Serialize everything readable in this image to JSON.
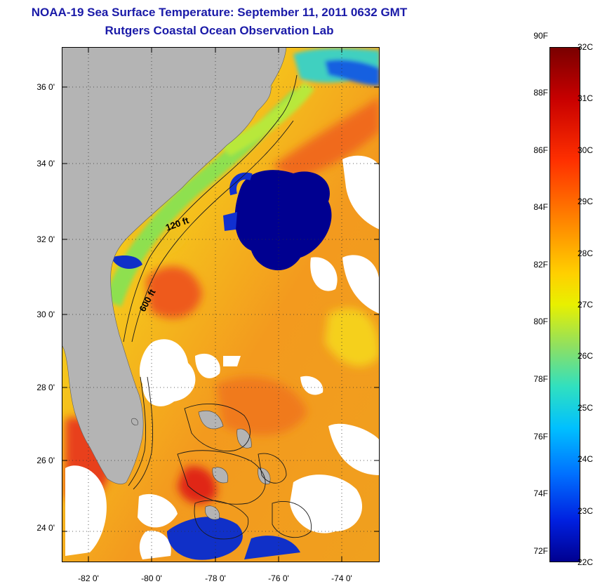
{
  "title_line1": "NOAA-19 Sea Surface Temperature:  September 11, 2011 0632 GMT",
  "title_line2": "Rutgers Coastal Ocean Observation Lab",
  "map": {
    "lat_labels": [
      {
        "lat": 36,
        "text": "36 0'"
      },
      {
        "lat": 34,
        "text": "34 0'"
      },
      {
        "lat": 32,
        "text": "32 0'"
      },
      {
        "lat": 30,
        "text": "30 0'"
      },
      {
        "lat": 28,
        "text": "28 0'"
      },
      {
        "lat": 26,
        "text": "26 0'"
      },
      {
        "lat": 24,
        "text": "24 0'"
      }
    ],
    "lon_labels": [
      {
        "lon": -82,
        "text": "-82 0'"
      },
      {
        "lon": -80,
        "text": "-80 0'"
      },
      {
        "lon": -78,
        "text": "-78 0'"
      },
      {
        "lon": -76,
        "text": "-76 0'"
      },
      {
        "lon": -74,
        "text": "-74 0'"
      }
    ],
    "lat_range": [
      23.0,
      37.0
    ],
    "lon_range": [
      -83.0,
      -73.0
    ],
    "contour_labels": [
      "120 ft",
      "600 ft"
    ],
    "colors": {
      "land": "#b4b4b4",
      "cloud": "#ffffff",
      "cold": "#000080",
      "warm": "#e8501e",
      "mid": "#f5d21e"
    }
  },
  "colorbar": {
    "celsius_labels": [
      "32C",
      "31C",
      "30C",
      "29C",
      "28C",
      "27C",
      "26C",
      "25C",
      "24C",
      "23C",
      "22C"
    ],
    "fahrenheit_labels": [
      "90F",
      "88F",
      "86F",
      "84F",
      "82F",
      "80F",
      "78F",
      "76F",
      "74F",
      "72F"
    ],
    "min_c": 22,
    "max_c": 32
  }
}
